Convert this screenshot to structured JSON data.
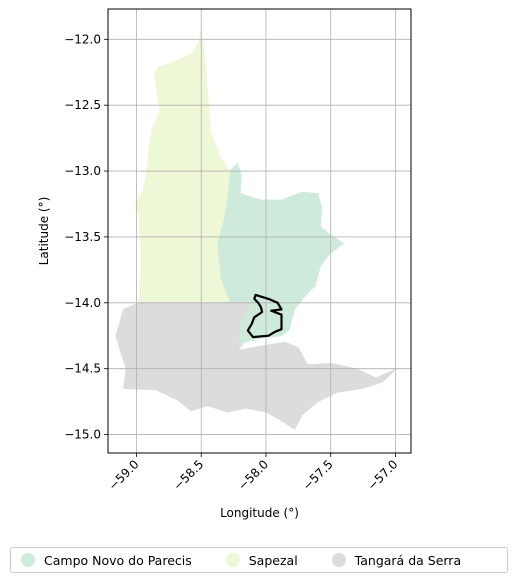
{
  "chart_data": {
    "type": "map",
    "xlabel": "Longitude (°)",
    "ylabel": "Latitude (°)",
    "xlim": [
      -59.22,
      -56.88
    ],
    "ylim": [
      -15.14,
      -11.77
    ],
    "grid": true,
    "x_ticks": [
      -59.0,
      -58.5,
      -58.0,
      -57.5,
      -57.0
    ],
    "x_tick_labels": [
      "−59.0",
      "−58.5",
      "−58.0",
      "−57.5",
      "−57.0"
    ],
    "y_ticks": [
      -12.0,
      -12.5,
      -13.0,
      -13.5,
      -14.0,
      -14.5,
      -15.0
    ],
    "y_tick_labels": [
      "−12.0",
      "−12.5",
      "−13.0",
      "−13.5",
      "−14.0",
      "−14.5",
      "−15.0"
    ],
    "legend_placement": "bottom",
    "regions": [
      {
        "name": "Campo Novo do Parecis",
        "color": "#ceeada",
        "polygon": [
          [
            -58.28,
            -13.0
          ],
          [
            -58.22,
            -12.94
          ],
          [
            -58.19,
            -13.04
          ],
          [
            -58.2,
            -13.17
          ],
          [
            -58.04,
            -13.22
          ],
          [
            -57.88,
            -13.22
          ],
          [
            -57.72,
            -13.16
          ],
          [
            -57.6,
            -13.17
          ],
          [
            -57.57,
            -13.28
          ],
          [
            -57.58,
            -13.42
          ],
          [
            -57.51,
            -13.48
          ],
          [
            -57.4,
            -13.55
          ],
          [
            -57.5,
            -13.62
          ],
          [
            -57.58,
            -13.72
          ],
          [
            -57.62,
            -13.87
          ],
          [
            -57.7,
            -13.95
          ],
          [
            -57.78,
            -14.05
          ],
          [
            -57.82,
            -14.2
          ],
          [
            -57.88,
            -14.25
          ],
          [
            -58.05,
            -14.27
          ],
          [
            -58.17,
            -14.3
          ],
          [
            -58.21,
            -14.36
          ],
          [
            -58.2,
            -14.15
          ],
          [
            -58.12,
            -14.04
          ],
          [
            -58.13,
            -14.0
          ],
          [
            -58.28,
            -14.0
          ],
          [
            -58.35,
            -13.82
          ],
          [
            -58.38,
            -13.55
          ],
          [
            -58.33,
            -13.38
          ],
          [
            -58.3,
            -13.2
          ]
        ]
      },
      {
        "name": "Sapezal",
        "color": "#eef8d7",
        "polygon": [
          [
            -58.5,
            -11.92
          ],
          [
            -58.52,
            -12.02
          ],
          [
            -58.56,
            -12.1
          ],
          [
            -58.68,
            -12.16
          ],
          [
            -58.83,
            -12.21
          ],
          [
            -58.86,
            -12.27
          ],
          [
            -58.82,
            -12.55
          ],
          [
            -58.88,
            -12.68
          ],
          [
            -58.9,
            -12.8
          ],
          [
            -58.92,
            -13.0
          ],
          [
            -58.95,
            -13.15
          ],
          [
            -59.01,
            -13.26
          ],
          [
            -58.98,
            -13.34
          ],
          [
            -58.97,
            -13.55
          ],
          [
            -58.97,
            -13.8
          ],
          [
            -58.98,
            -14.0
          ],
          [
            -58.28,
            -14.0
          ],
          [
            -58.35,
            -13.82
          ],
          [
            -58.38,
            -13.55
          ],
          [
            -58.33,
            -13.38
          ],
          [
            -58.3,
            -13.2
          ],
          [
            -58.28,
            -13.0
          ],
          [
            -58.35,
            -12.9
          ],
          [
            -58.43,
            -12.7
          ],
          [
            -58.45,
            -12.4
          ],
          [
            -58.47,
            -12.15
          ]
        ]
      },
      {
        "name": "Tangará da Serra",
        "color": "#dcdcdc",
        "polygon": [
          [
            -58.98,
            -14.0
          ],
          [
            -58.13,
            -14.0
          ],
          [
            -58.12,
            -14.04
          ],
          [
            -58.2,
            -14.15
          ],
          [
            -58.21,
            -14.36
          ],
          [
            -58.05,
            -14.33
          ],
          [
            -57.85,
            -14.3
          ],
          [
            -57.75,
            -14.34
          ],
          [
            -57.68,
            -14.47
          ],
          [
            -57.5,
            -14.46
          ],
          [
            -57.3,
            -14.5
          ],
          [
            -57.15,
            -14.57
          ],
          [
            -56.99,
            -14.5
          ],
          [
            -57.1,
            -14.6
          ],
          [
            -57.25,
            -14.65
          ],
          [
            -57.45,
            -14.68
          ],
          [
            -57.6,
            -14.75
          ],
          [
            -57.72,
            -14.85
          ],
          [
            -57.78,
            -14.96
          ],
          [
            -57.87,
            -14.9
          ],
          [
            -58.0,
            -14.83
          ],
          [
            -58.15,
            -14.8
          ],
          [
            -58.3,
            -14.83
          ],
          [
            -58.45,
            -14.78
          ],
          [
            -58.58,
            -14.82
          ],
          [
            -58.68,
            -14.74
          ],
          [
            -58.85,
            -14.66
          ],
          [
            -59.1,
            -14.65
          ],
          [
            -59.08,
            -14.5
          ],
          [
            -59.13,
            -14.35
          ],
          [
            -59.16,
            -14.25
          ],
          [
            -59.1,
            -14.05
          ]
        ]
      }
    ],
    "outline": {
      "color": "#000000",
      "polygon": [
        [
          -58.08,
          -13.94
        ],
        [
          -57.98,
          -13.97
        ],
        [
          -57.91,
          -14.0
        ],
        [
          -57.88,
          -14.05
        ],
        [
          -57.96,
          -14.06
        ],
        [
          -57.88,
          -14.09
        ],
        [
          -57.88,
          -14.2
        ],
        [
          -57.93,
          -14.22
        ],
        [
          -57.98,
          -14.25
        ],
        [
          -58.1,
          -14.26
        ],
        [
          -58.14,
          -14.21
        ],
        [
          -58.11,
          -14.16
        ],
        [
          -58.09,
          -14.11
        ],
        [
          -58.03,
          -14.07
        ],
        [
          -58.04,
          -14.03
        ],
        [
          -58.06,
          -14.0
        ],
        [
          -58.09,
          -13.97
        ]
      ]
    }
  },
  "legend": {
    "items": [
      {
        "label": "Campo Novo do Parecis",
        "color": "#ceeada"
      },
      {
        "label": "Sapezal",
        "color": "#eef8d7"
      },
      {
        "label": "Tangará da Serra",
        "color": "#dcdcdc"
      }
    ]
  }
}
